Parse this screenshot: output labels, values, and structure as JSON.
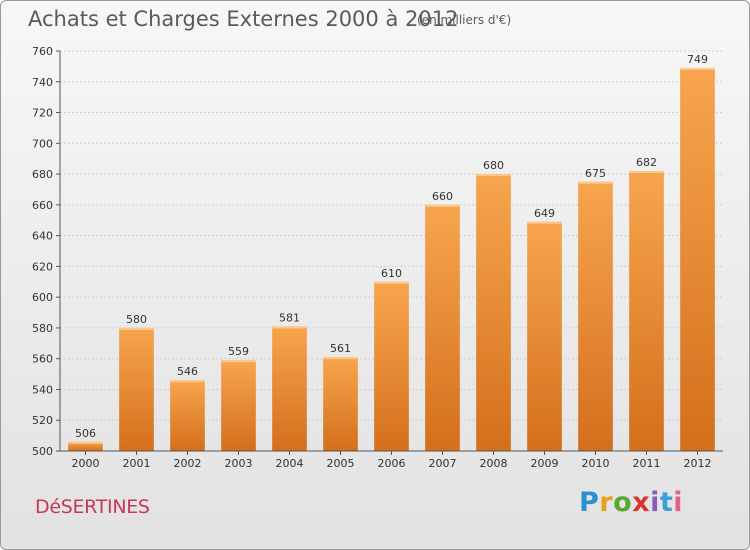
{
  "chart_data": {
    "type": "bar",
    "title": "Achats et Charges Externes 2000 à 2012",
    "unit_label": "(en milliers d'€)",
    "categories": [
      "2000",
      "2001",
      "2002",
      "2003",
      "2004",
      "2005",
      "2006",
      "2007",
      "2008",
      "2009",
      "2010",
      "2011",
      "2012"
    ],
    "values": [
      506,
      580,
      546,
      559,
      581,
      561,
      610,
      660,
      680,
      649,
      675,
      682,
      749
    ],
    "ylim": [
      500,
      760
    ],
    "yticks": [
      500,
      520,
      540,
      560,
      580,
      600,
      620,
      640,
      660,
      680,
      700,
      720,
      740,
      760
    ],
    "grid": true,
    "legend": "none",
    "bar_color_top": "#f7a54e",
    "bar_color_bottom": "#d46f1c"
  },
  "footer": {
    "city": "DéSERTINES",
    "logo_letters": [
      "P",
      "r",
      "o",
      "x",
      "i",
      "t",
      "i"
    ]
  }
}
